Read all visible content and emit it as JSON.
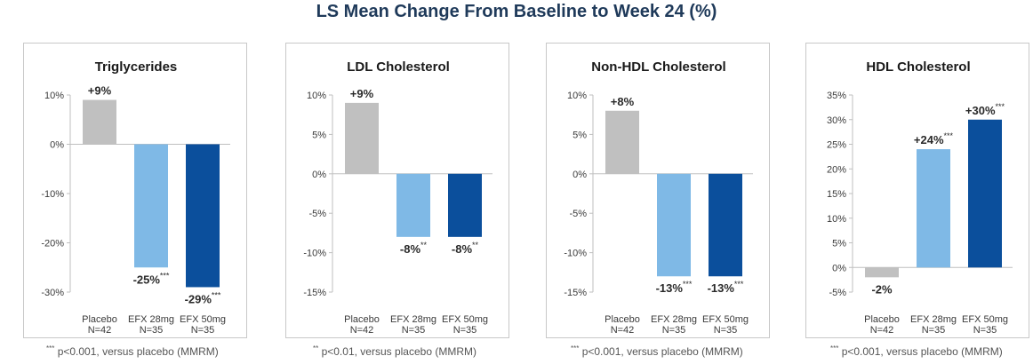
{
  "title": "LS Mean Change From Baseline to Week 24 (%)",
  "colors": {
    "placebo": "#c0c0c0",
    "efx28": "#7fb9e6",
    "efx50": "#0b4f9c"
  },
  "chart_data": [
    {
      "type": "bar",
      "title": "Triglycerides",
      "categories": [
        "Placebo N=42",
        "EFX 28mg N=35",
        "EFX 50mg N=35"
      ],
      "category_lines": [
        [
          "Placebo",
          "N=42"
        ],
        [
          "EFX 28mg",
          "N=35"
        ],
        [
          "EFX 50mg",
          "N=35"
        ]
      ],
      "values": [
        9,
        -25,
        -29
      ],
      "data_labels": [
        "+9%",
        "-25%",
        "-29%"
      ],
      "significance": [
        "",
        "***",
        "***"
      ],
      "ylim": [
        -30,
        10
      ],
      "yticks": [
        10,
        0,
        -10,
        -20,
        -30
      ],
      "ytick_labels": [
        "10%",
        "0%",
        "-10%",
        "-20%",
        "-30%"
      ],
      "grid": false,
      "footnote": {
        "marker": "***",
        "text": "p<0.001, versus placebo (MMRM)"
      }
    },
    {
      "type": "bar",
      "title": "LDL Cholesterol",
      "categories": [
        "Placebo N=42",
        "EFX 28mg N=35",
        "EFX 50mg N=35"
      ],
      "category_lines": [
        [
          "Placebo",
          "N=42"
        ],
        [
          "EFX 28mg",
          "N=35"
        ],
        [
          "EFX 50mg",
          "N=35"
        ]
      ],
      "values": [
        9,
        -8,
        -8
      ],
      "data_labels": [
        "+9%",
        "-8%",
        "-8%"
      ],
      "significance": [
        "",
        "**",
        "**"
      ],
      "ylim": [
        -15,
        10
      ],
      "yticks": [
        10,
        5,
        0,
        -5,
        -10,
        -15
      ],
      "ytick_labels": [
        "10%",
        "5%",
        "0%",
        "-5%",
        "-10%",
        "-15%"
      ],
      "grid": false,
      "footnote": {
        "marker": "**",
        "text": "p<0.01, versus placebo (MMRM)"
      }
    },
    {
      "type": "bar",
      "title": "Non-HDL Cholesterol",
      "categories": [
        "Placebo N=42",
        "EFX 28mg N=35",
        "EFX 50mg N=35"
      ],
      "category_lines": [
        [
          "Placebo",
          "N=42"
        ],
        [
          "EFX 28mg",
          "N=35"
        ],
        [
          "EFX 50mg",
          "N=35"
        ]
      ],
      "values": [
        8,
        -13,
        -13
      ],
      "data_labels": [
        "+8%",
        "-13%",
        "-13%"
      ],
      "significance": [
        "",
        "***",
        "***"
      ],
      "ylim": [
        -15,
        10
      ],
      "yticks": [
        10,
        5,
        0,
        -5,
        -10,
        -15
      ],
      "ytick_labels": [
        "10%",
        "5%",
        "0%",
        "-5%",
        "-10%",
        "-15%"
      ],
      "grid": false,
      "footnote": {
        "marker": "***",
        "text": "p<0.001, versus placebo (MMRM)"
      }
    },
    {
      "type": "bar",
      "title": "HDL Cholesterol",
      "categories": [
        "Placebo N=42",
        "EFX 28mg N=35",
        "EFX 50mg N=35"
      ],
      "category_lines": [
        [
          "Placebo",
          "N=42"
        ],
        [
          "EFX 28mg",
          "N=35"
        ],
        [
          "EFX 50mg",
          "N=35"
        ]
      ],
      "values": [
        -2,
        24,
        30
      ],
      "data_labels": [
        "-2%",
        "+24%",
        "+30%"
      ],
      "significance": [
        "",
        "***",
        "***"
      ],
      "ylim": [
        -5,
        35
      ],
      "yticks": [
        35,
        30,
        25,
        20,
        15,
        10,
        5,
        0,
        -5
      ],
      "ytick_labels": [
        "35%",
        "30%",
        "25%",
        "20%",
        "15%",
        "10%",
        "5%",
        "0%",
        "-5%"
      ],
      "grid": false,
      "footnote": {
        "marker": "***",
        "text": "p<0.001, versus placebo (MMRM)"
      }
    }
  ]
}
